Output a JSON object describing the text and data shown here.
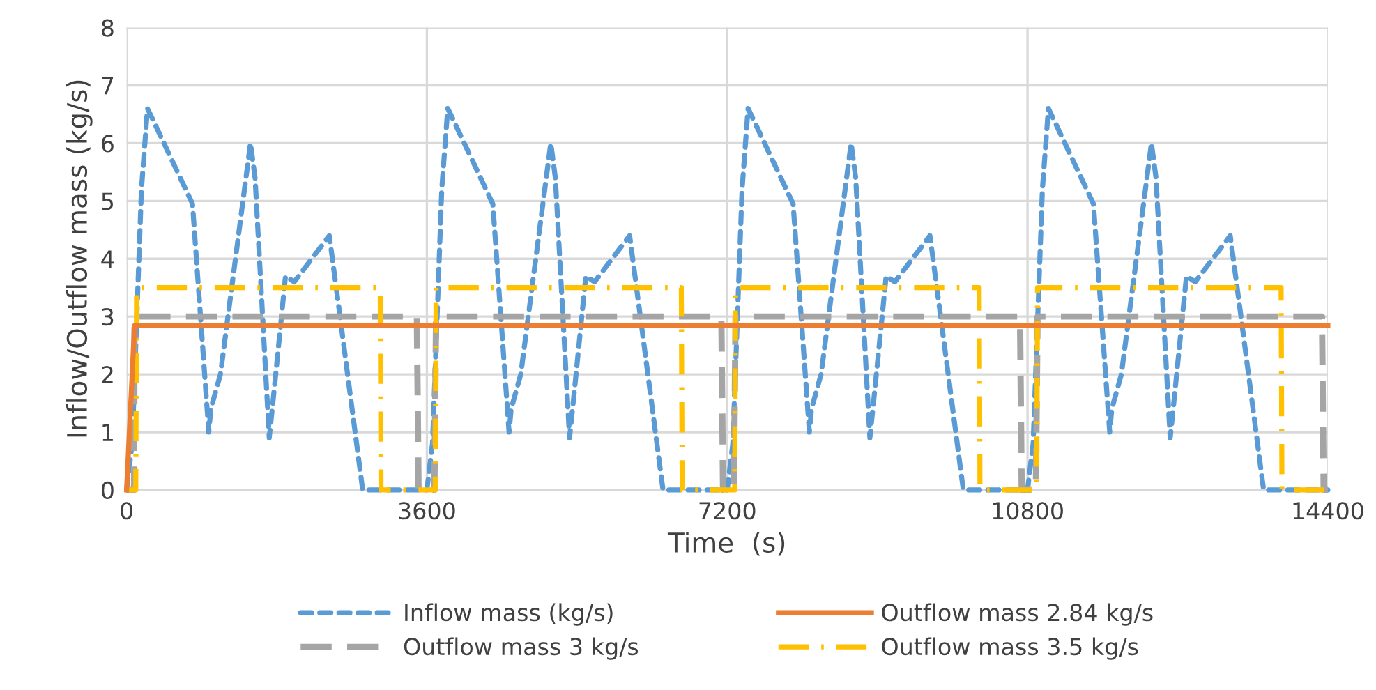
{
  "chart_data": {
    "type": "line",
    "xlabel": "Time  (s)",
    "ylabel": "Inflow/Outflow mass (kg/s)",
    "xlim": [
      0,
      14400
    ],
    "xticks": [
      0,
      3600,
      7200,
      10800,
      14400
    ],
    "ylim": [
      0,
      8
    ],
    "yticks": [
      0,
      1,
      2,
      3,
      4,
      5,
      6,
      7,
      8
    ],
    "grid": true,
    "legend": "bottom",
    "marker": "none",
    "series": [
      {
        "name": "Inflow mass (kg/s)",
        "color": "#5b9bd5",
        "line_style": "dotted",
        "x": [
          0,
          67,
          178,
          250,
          317,
          790,
          985,
          1010,
          1125,
          1485,
          1540,
          1710,
          1760,
          1905,
          2010,
          2430,
          2545,
          2830,
          3600,
          3667,
          3778,
          3850,
          3917,
          4390,
          4585,
          4610,
          4725,
          5085,
          5140,
          5310,
          5360,
          5505,
          5610,
          6030,
          6145,
          6430,
          7200,
          7267,
          7378,
          7450,
          7517,
          7990,
          8185,
          8210,
          8325,
          8685,
          8740,
          8910,
          8960,
          9105,
          9210,
          9630,
          9745,
          10030,
          10800,
          10867,
          10978,
          11050,
          11117,
          11590,
          11785,
          11810,
          11925,
          12285,
          12340,
          12510,
          12560,
          12705,
          12810,
          13230,
          13345,
          13630,
          14400
        ],
        "values": [
          0,
          0.8,
          5.2,
          6.6,
          6.4,
          4.95,
          1.0,
          1.4,
          2.0,
          6.0,
          5.4,
          0.9,
          1.6,
          3.7,
          3.6,
          4.4,
          3.15,
          0,
          0,
          0.8,
          5.2,
          6.6,
          6.4,
          4.95,
          1.0,
          1.4,
          2.0,
          6.0,
          5.4,
          0.9,
          1.6,
          3.7,
          3.6,
          4.4,
          3.15,
          0,
          0,
          0.8,
          5.2,
          6.6,
          6.4,
          4.95,
          1.0,
          1.4,
          2.0,
          6.0,
          5.4,
          0.9,
          1.6,
          3.7,
          3.6,
          4.4,
          3.15,
          0,
          0,
          0.8,
          5.2,
          6.6,
          6.4,
          4.95,
          1.0,
          1.4,
          2.0,
          6.0,
          5.4,
          0.9,
          1.6,
          3.7,
          3.6,
          4.4,
          3.15,
          0,
          0
        ]
      },
      {
        "name": "Outflow mass 2.84 kg/s",
        "color": "#ed7d31",
        "line_style": "solid",
        "x": [
          0,
          95,
          14400
        ],
        "values": [
          0,
          2.84,
          2.84
        ]
      },
      {
        "name": "Outflow mass 3 kg/s",
        "color": "#a5a5a5",
        "line_style": "dashed",
        "x": [
          0,
          90,
          95,
          3480,
          3500,
          3690,
          3710,
          7130,
          7150,
          7280,
          7300,
          10710,
          10730,
          10900,
          10920,
          14330,
          14350,
          14400
        ],
        "values": [
          0,
          0,
          3,
          3,
          0,
          0,
          3,
          3,
          0,
          0,
          3,
          3,
          0,
          0,
          3,
          3,
          0,
          0
        ]
      },
      {
        "name": "Outflow mass 3.5 kg/s",
        "color": "#ffc000",
        "line_style": "dashdot",
        "x": [
          0,
          110,
          120,
          3040,
          3050,
          3700,
          3710,
          6650,
          6660,
          7290,
          7300,
          10220,
          10230,
          10910,
          10920,
          13840,
          13850,
          14400
        ],
        "values": [
          0,
          0,
          3.5,
          3.5,
          0,
          0,
          3.5,
          3.5,
          0,
          0,
          3.5,
          3.5,
          0,
          0,
          3.5,
          3.5,
          0,
          0
        ]
      }
    ]
  }
}
